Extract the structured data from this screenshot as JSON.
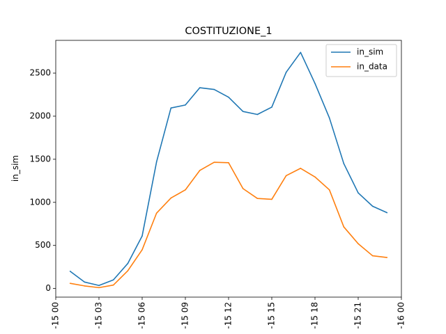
{
  "chart_data": {
    "type": "line",
    "title": "COSTITUZIONE_1",
    "xlabel": "",
    "ylabel": "in_sim",
    "x": [
      1,
      2,
      3,
      4,
      5,
      6,
      7,
      8,
      9,
      10,
      11,
      12,
      13,
      14,
      15,
      16,
      17,
      18,
      19,
      20,
      21,
      22,
      23
    ],
    "x_unit": "hour",
    "xlim": [
      0,
      24
    ],
    "x_ticks": [
      0,
      3,
      6,
      9,
      12,
      15,
      18,
      21,
      24
    ],
    "x_tick_labels": [
      "-15 00",
      "-15 03",
      "-15 06",
      "-15 09",
      "-15 12",
      "-15 15",
      "-15 18",
      "-15 21",
      "-16 00"
    ],
    "ylim": [
      -100,
      2880
    ],
    "y_ticks": [
      0,
      500,
      1000,
      1500,
      2000,
      2500
    ],
    "y_tick_labels": [
      "0",
      "500",
      "1000",
      "1500",
      "2000",
      "2500"
    ],
    "grid": false,
    "legend_position": "top-right",
    "series": [
      {
        "name": "in_sim",
        "color": "#1f77b4",
        "values": [
          200,
          75,
          35,
          100,
          290,
          610,
          1470,
          2095,
          2130,
          2330,
          2310,
          2220,
          2055,
          2020,
          2105,
          2510,
          2740,
          2380,
          1980,
          1450,
          1110,
          955,
          880
        ]
      },
      {
        "name": "in_data",
        "color": "#ff7f0e",
        "values": [
          60,
          30,
          10,
          40,
          205,
          450,
          875,
          1050,
          1145,
          1370,
          1465,
          1460,
          1160,
          1045,
          1035,
          1310,
          1395,
          1295,
          1145,
          715,
          520,
          380,
          360
        ]
      }
    ]
  }
}
